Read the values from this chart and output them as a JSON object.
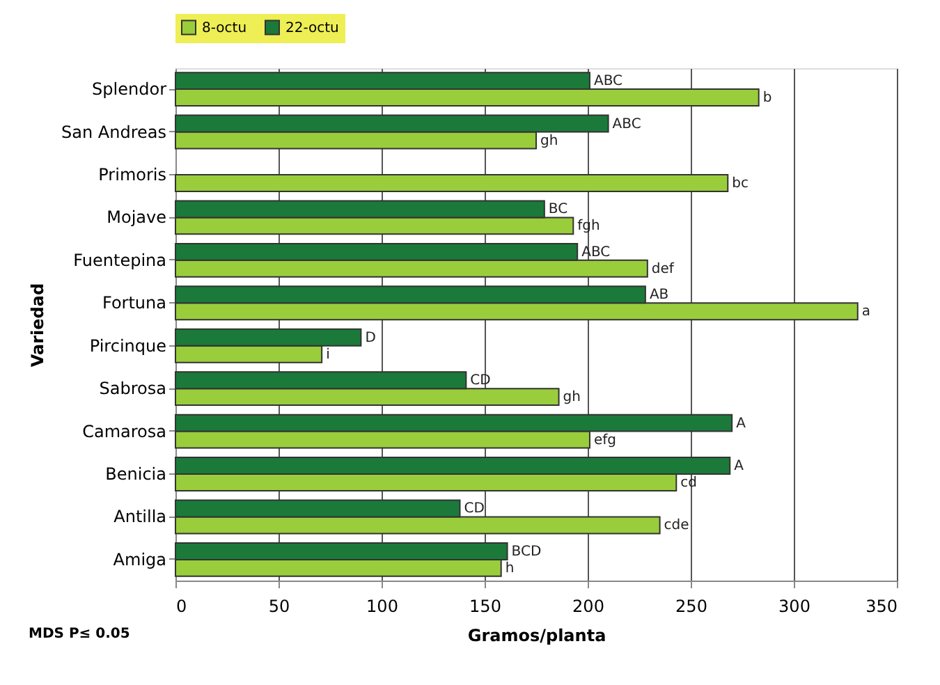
{
  "chart_data": {
    "type": "bar",
    "orientation": "horizontal",
    "xlabel": "Gramos/planta",
    "ylabel": "Variedad",
    "categories": [
      "Splendor",
      "San Andreas",
      "Primoris",
      "Mojave",
      "Fuentepina",
      "Fortuna",
      "Pircinque",
      "Sabrosa",
      "Camarosa",
      "Benicia",
      "Antilla",
      "Amiga"
    ],
    "series": [
      {
        "name": "8-octu",
        "color": "#9acd3c",
        "values": [
          283,
          175,
          268,
          193,
          229,
          331,
          71,
          186,
          201,
          243,
          235,
          158
        ],
        "value_labels": [
          "b",
          "gh",
          "bc",
          "fgh",
          "def",
          "a",
          "i",
          "gh",
          "efg",
          "cd",
          "cde",
          "h"
        ]
      },
      {
        "name": "22-octu",
        "color": "#1b7a3a",
        "values": [
          201,
          210,
          null,
          179,
          195,
          228,
          90,
          141,
          270,
          269,
          138,
          161
        ],
        "value_labels": [
          "ABC",
          "ABC",
          null,
          "BC",
          "ABC",
          "AB",
          "D",
          "CD",
          "A",
          "A",
          "CD",
          "BCD"
        ]
      }
    ],
    "xlim": [
      0,
      350
    ],
    "xticks": [
      0,
      50,
      100,
      150,
      200,
      250,
      300,
      350
    ],
    "grid": "x",
    "legend": "top",
    "annotations": [
      "MDS P≤ 0.05"
    ]
  }
}
